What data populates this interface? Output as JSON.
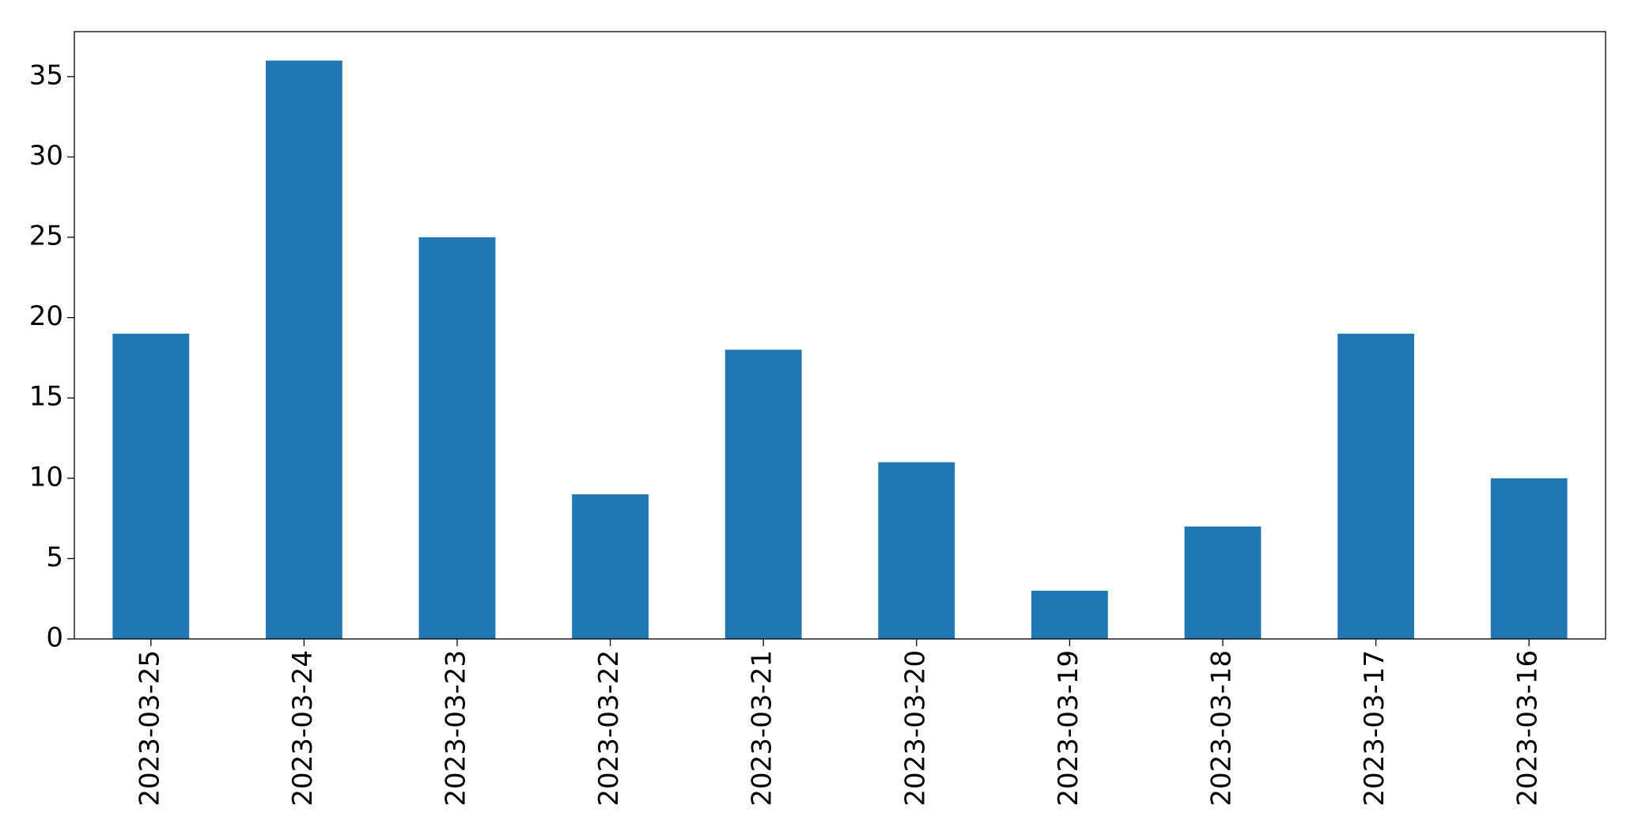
{
  "chart_data": {
    "type": "bar",
    "categories": [
      "2023-03-25",
      "2023-03-24",
      "2023-03-23",
      "2023-03-22",
      "2023-03-21",
      "2023-03-20",
      "2023-03-19",
      "2023-03-18",
      "2023-03-17",
      "2023-03-16"
    ],
    "values": [
      19,
      36,
      25,
      9,
      18,
      11,
      3,
      7,
      19,
      10
    ],
    "color": "#1f77b4",
    "ylim": [
      0,
      37.8
    ],
    "yticks": [
      0,
      5,
      10,
      15,
      20,
      25,
      30,
      35
    ],
    "grid": false
  }
}
